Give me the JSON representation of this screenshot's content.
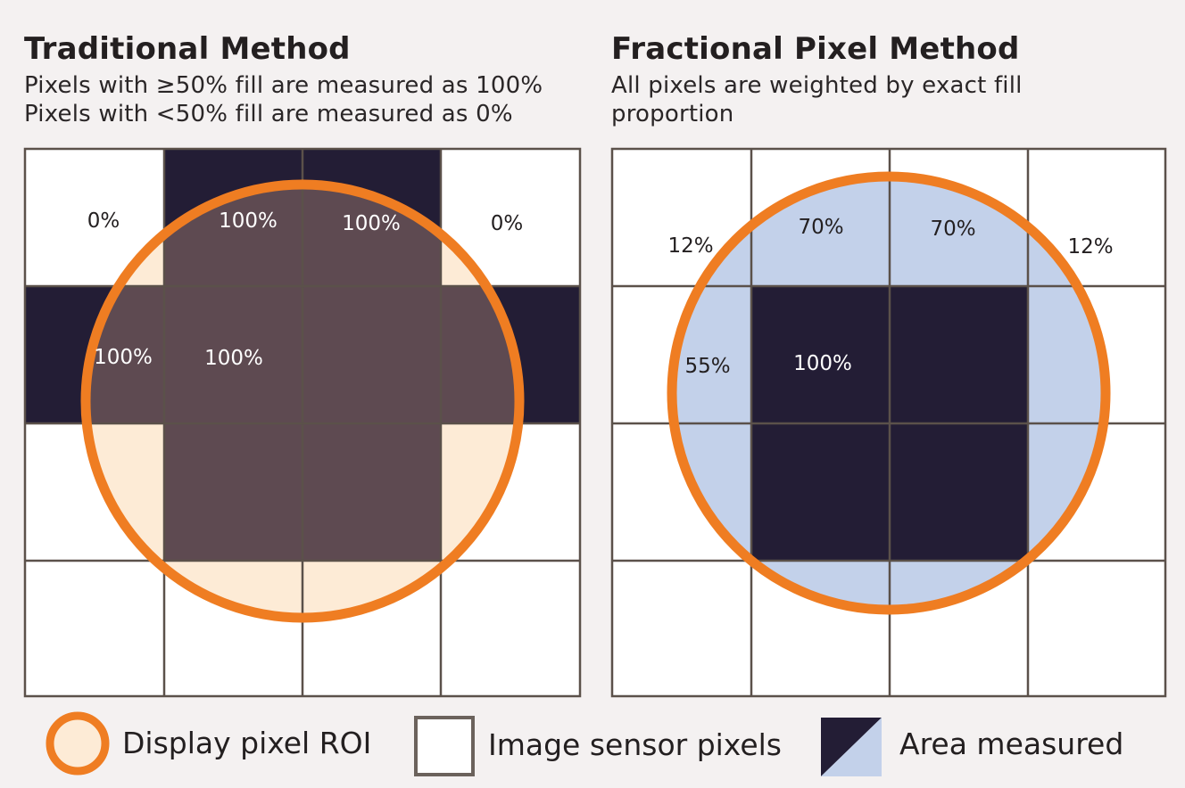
{
  "traditional": {
    "title": "Traditional Method",
    "desc_line1": "Pixels with ≥50% fill are measured as 100%",
    "desc_line2": "Pixels with <50% fill are measured as 0%",
    "labels": {
      "top_left": "0%",
      "top_mid_left": "100%",
      "top_mid_right": "100%",
      "top_right": "0%",
      "mid_left": "100%",
      "mid_inner": "100%"
    }
  },
  "fractional": {
    "title": "Fractional Pixel Method",
    "desc_line1": "All pixels are weighted by exact fill",
    "desc_line2": "proportion",
    "labels": {
      "top_left": "12%",
      "top_mid_left": "70%",
      "top_mid_right": "70%",
      "top_right": "12%",
      "mid_left": "55%",
      "mid_inner": "100%"
    }
  },
  "legend": {
    "roi_label": "Display pixel ROI",
    "sensor_label": "Image sensor pixels",
    "area_label": "Area measured"
  },
  "colors": {
    "background": "#f4f1f1",
    "roi_ring": "#ef7d22",
    "roi_fill": "#fdebd6",
    "measured_dark": "#231d35",
    "measured_overlap": "#5e4a51",
    "fractional_fill": "#c3d1ea",
    "grid_line": "#5b514a"
  },
  "icons": {
    "roi": "orange-ring-circle",
    "sensor": "white-square",
    "area": "diagonal-split-square"
  }
}
